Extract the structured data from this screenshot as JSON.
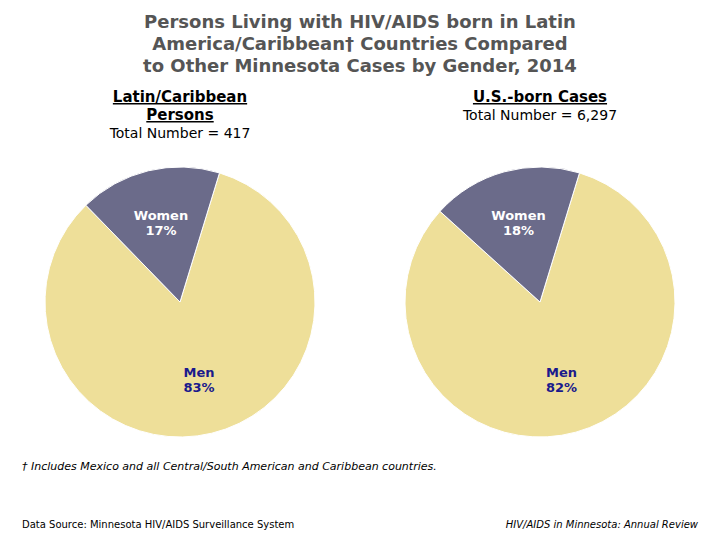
{
  "chart_data": [
    {
      "type": "pie",
      "title": "Persons Living with HIV/AIDS born in Latin\nAmerica/Caribbean† Countries Compared\nto Other Minnesota Cases by Gender, 2014",
      "subtitle": "Latin/Caribbean\nPersons",
      "annotations": [
        "Total Number = 417",
        "† Includes Mexico and all Central/South American and Caribbean countries.",
        "Data Source: Minnesota HIV/AIDS Surveillance System",
        "HIV/AIDS in Minnesota: Annual Review"
      ],
      "values": [
        83,
        17
      ],
      "value_labels": [
        "Men\n83%",
        "Women\n17%"
      ],
      "colors": [
        "#eedf99",
        "#6b6b8a"
      ],
      "data_labels": true
    },
    {
      "type": "pie",
      "subtitle": "U.S.-born Cases",
      "annotations": [
        "Total Number = 6,297"
      ],
      "values": [
        82,
        18
      ],
      "value_labels": [
        "Men\n82%",
        "Women\n18%"
      ],
      "colors": [
        "#eedf99",
        "#6b6b8a"
      ],
      "data_labels": true
    }
  ]
}
